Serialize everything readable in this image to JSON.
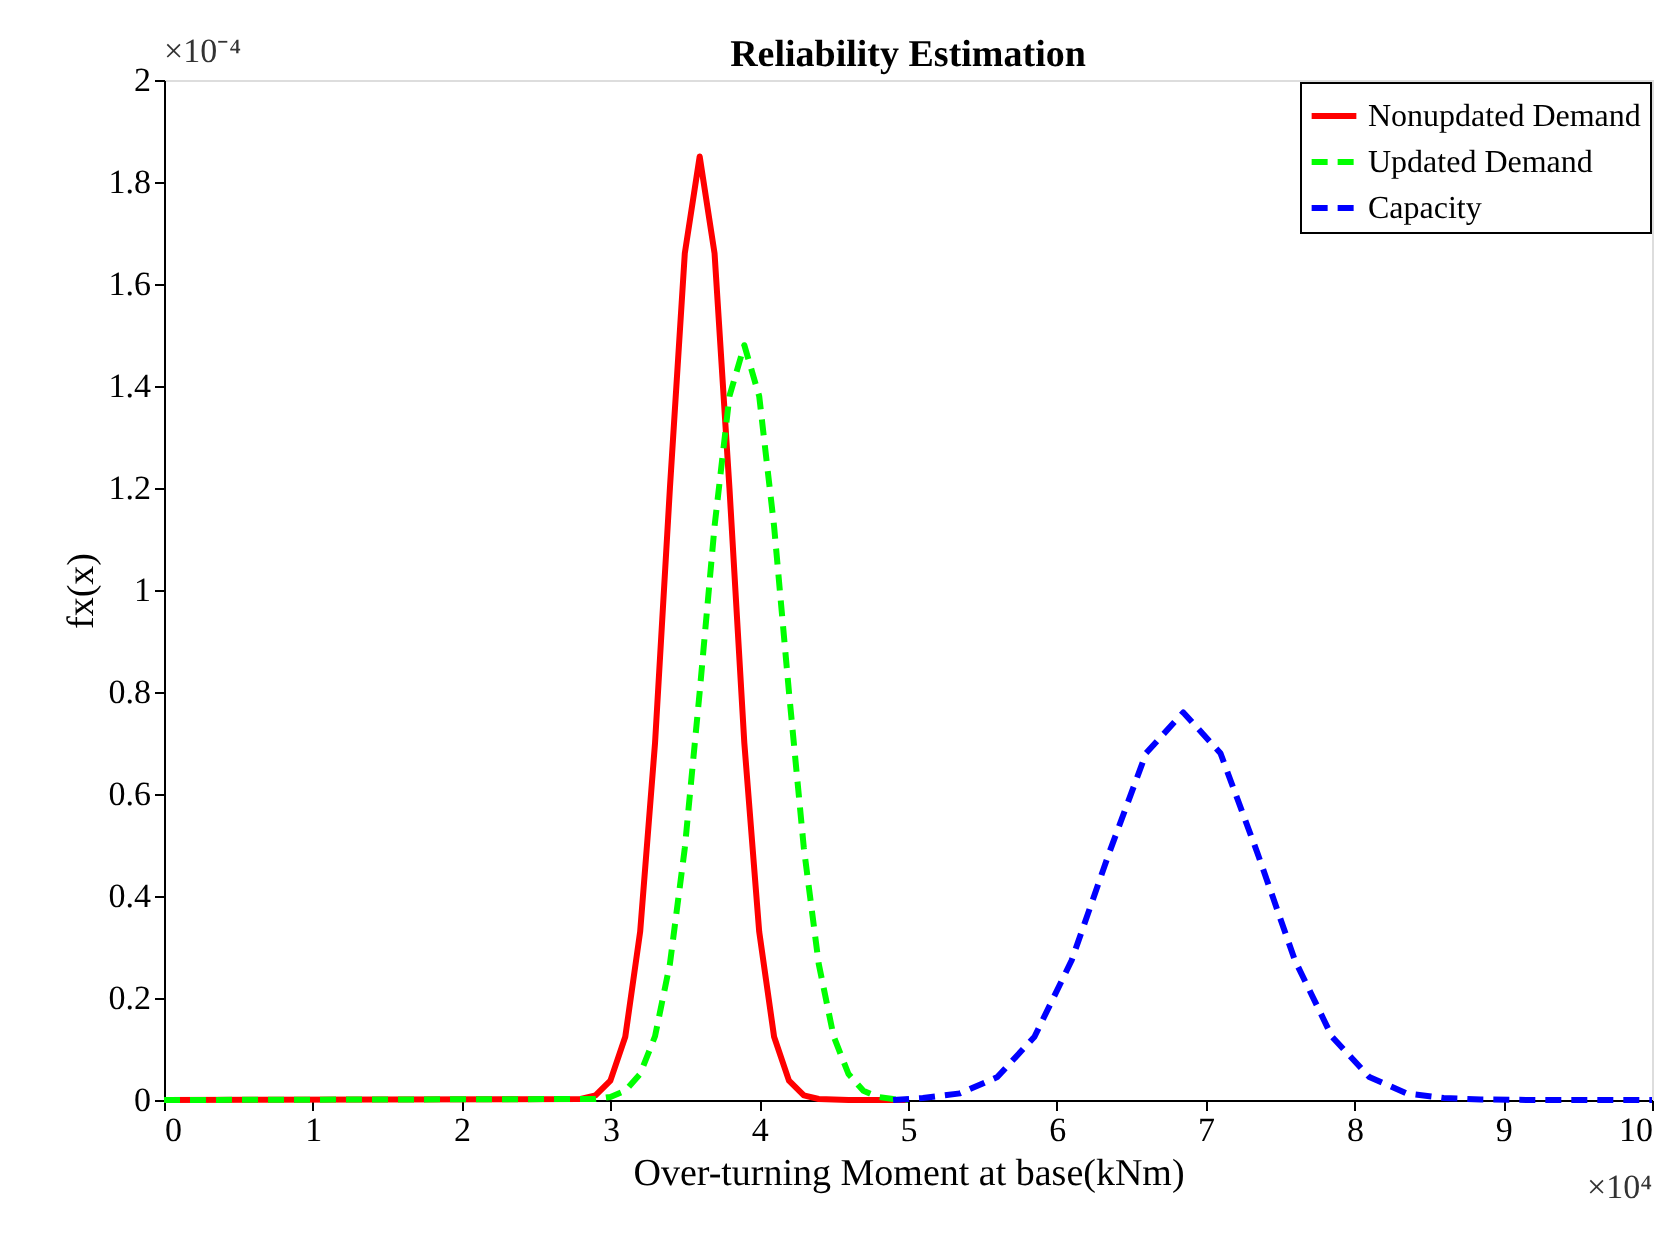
{
  "chart_data": {
    "type": "line",
    "title": "Reliability Estimation",
    "xlabel": "Over-turning Moment at base(kNm)",
    "ylabel": "fx(x)",
    "xlim": [
      0,
      10
    ],
    "xticks": [
      0,
      1,
      2,
      3,
      4,
      5,
      6,
      7,
      8,
      9,
      10
    ],
    "ylim": [
      0,
      2
    ],
    "yticks": [
      0,
      0.2,
      0.4,
      0.6,
      0.8,
      1,
      1.2,
      1.4,
      1.6,
      1.8,
      2
    ],
    "legend": "top right",
    "annotations": [
      "×10⁻⁴",
      "×10⁴"
    ],
    "series": [
      {
        "name": "Nonupdated Demand",
        "color": "#ff0000",
        "line_style": "solid",
        "x": [
          0,
          2.8,
          2.9,
          3.0,
          3.1,
          3.2,
          3.3,
          3.4,
          3.5,
          3.6,
          3.7,
          3.8,
          3.9,
          4.0,
          4.1,
          4.2,
          4.3,
          4.4,
          4.6,
          5.0
        ],
        "values": [
          0,
          0.002,
          0.009,
          0.038,
          0.124,
          0.33,
          0.7,
          1.2,
          1.66,
          1.85,
          1.66,
          1.2,
          0.7,
          0.33,
          0.124,
          0.038,
          0.009,
          0.002,
          0,
          0
        ]
      },
      {
        "name": "Updated Demand",
        "color": "#00ff00",
        "line_style": "dashed",
        "x": [
          0,
          2.9,
          3.0,
          3.1,
          3.2,
          3.3,
          3.4,
          3.5,
          3.6,
          3.7,
          3.8,
          3.9,
          4.0,
          4.1,
          4.2,
          4.3,
          4.4,
          4.5,
          4.6,
          4.7,
          4.8,
          4.9,
          5.0
        ],
        "values": [
          0,
          0.002,
          0.006,
          0.018,
          0.051,
          0.125,
          0.267,
          0.494,
          0.8,
          1.125,
          1.38,
          1.48,
          1.38,
          1.125,
          0.8,
          0.494,
          0.267,
          0.125,
          0.051,
          0.018,
          0.006,
          0.002,
          0
        ]
      },
      {
        "name": "Capacity",
        "color": "#0000ff",
        "line_style": "dashed",
        "x": [
          4.9,
          5.1,
          5.35,
          5.6,
          5.85,
          6.1,
          6.35,
          6.6,
          6.85,
          7.1,
          7.35,
          7.6,
          7.85,
          8.1,
          8.35,
          8.6,
          8.85,
          9.2,
          10
        ],
        "values": [
          0,
          0.004,
          0.013,
          0.045,
          0.124,
          0.274,
          0.483,
          0.68,
          0.76,
          0.68,
          0.483,
          0.274,
          0.124,
          0.045,
          0.013,
          0.004,
          0.001,
          0,
          0
        ]
      }
    ]
  }
}
